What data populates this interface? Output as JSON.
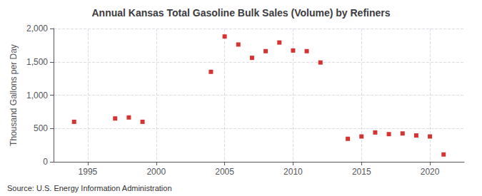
{
  "chart_data": {
    "type": "scatter",
    "title": "Annual Kansas Total Gasoline Bulk Sales (Volume) by Refiners",
    "ylabel": "Thousand Gallons per Day",
    "annotations": [
      "Source: U.S. Energy Information Administration"
    ],
    "x": [
      1994,
      1997,
      1998,
      1999,
      2004,
      2005,
      2006,
      2007,
      2008,
      2009,
      2010,
      2011,
      2012,
      2014,
      2015,
      2016,
      2017,
      2018,
      2019,
      2020,
      2021
    ],
    "values": [
      600,
      650,
      665,
      600,
      1350,
      1880,
      1760,
      1560,
      1660,
      1790,
      1670,
      1660,
      1490,
      345,
      380,
      440,
      415,
      425,
      395,
      380,
      110
    ],
    "color": "#cc0000",
    "marker": "square",
    "xlim": [
      1992.5,
      2022.5
    ],
    "xticks": [
      1995,
      2000,
      2005,
      2010,
      2015,
      2020
    ],
    "ylim": [
      0,
      2000
    ],
    "yticks": [
      0,
      500,
      {
        "value": 1000,
        "label": "1,000"
      },
      {
        "value": 1500,
        "label": "1,500"
      },
      {
        "value": 2000,
        "label": "2,000"
      }
    ],
    "grid": true
  }
}
